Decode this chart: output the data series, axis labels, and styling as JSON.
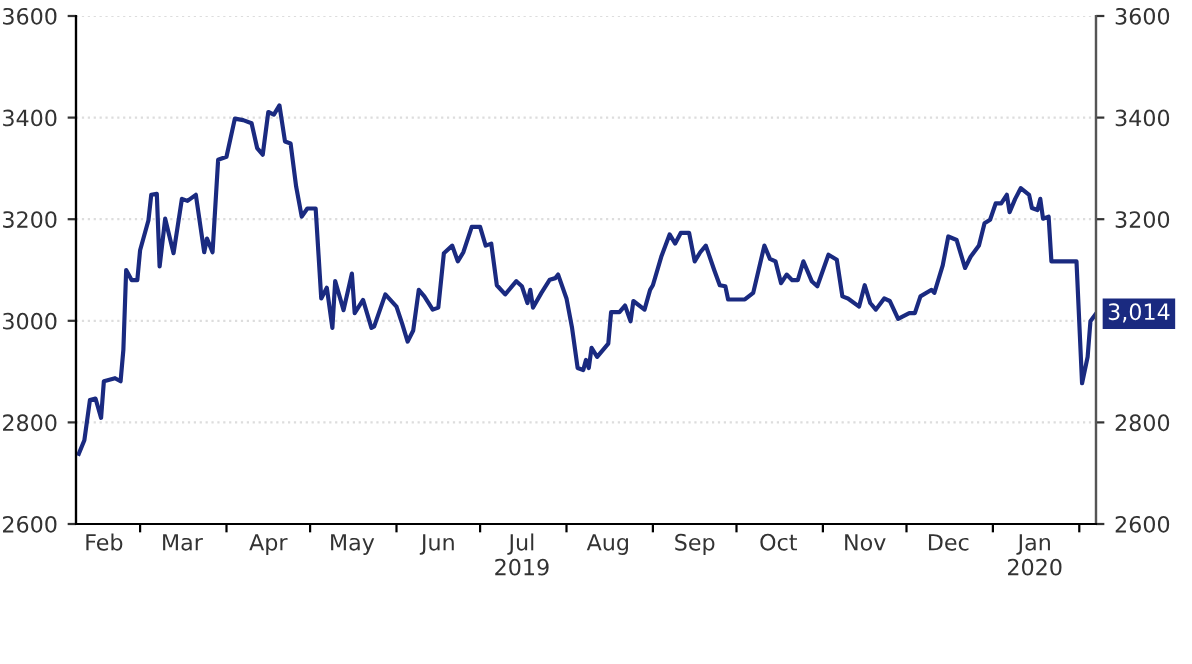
{
  "chart_data": {
    "type": "line",
    "x": [
      "2019-02-07",
      "2019-02-09",
      "2019-02-11",
      "2019-02-13",
      "2019-02-15",
      "2019-02-16",
      "2019-02-20",
      "2019-02-22",
      "2019-02-23",
      "2019-02-24",
      "2019-02-26",
      "2019-02-28",
      "2019-03-01",
      "2019-03-04",
      "2019-03-05",
      "2019-03-07",
      "2019-03-08",
      "2019-03-10",
      "2019-03-13",
      "2019-03-16",
      "2019-03-18",
      "2019-03-21",
      "2019-03-24",
      "2019-03-25",
      "2019-03-27",
      "2019-03-29",
      "2019-04-01",
      "2019-04-04",
      "2019-04-07",
      "2019-04-10",
      "2019-04-12",
      "2019-04-14",
      "2019-04-16",
      "2019-04-18",
      "2019-04-20",
      "2019-04-22",
      "2019-04-24",
      "2019-04-26",
      "2019-04-28",
      "2019-04-30",
      "2019-05-03",
      "2019-05-05",
      "2019-05-07",
      "2019-05-09",
      "2019-05-10",
      "2019-05-13",
      "2019-05-16",
      "2019-05-17",
      "2019-05-20",
      "2019-05-23",
      "2019-05-24",
      "2019-05-28",
      "2019-06-01",
      "2019-06-03",
      "2019-06-05",
      "2019-06-07",
      "2019-06-09",
      "2019-06-11",
      "2019-06-14",
      "2019-06-16",
      "2019-06-18",
      "2019-06-21",
      "2019-06-23",
      "2019-06-25",
      "2019-06-28",
      "2019-07-01",
      "2019-07-03",
      "2019-07-05",
      "2019-07-07",
      "2019-07-10",
      "2019-07-14",
      "2019-07-16",
      "2019-07-18",
      "2019-07-19",
      "2019-07-20",
      "2019-07-23",
      "2019-07-26",
      "2019-07-28",
      "2019-07-29",
      "2019-08-01",
      "2019-08-03",
      "2019-08-05",
      "2019-08-07",
      "2019-08-08",
      "2019-08-09",
      "2019-08-10",
      "2019-08-12",
      "2019-08-16",
      "2019-08-17",
      "2019-08-20",
      "2019-08-22",
      "2019-08-24",
      "2019-08-25",
      "2019-08-29",
      "2019-08-31",
      "2019-09-01",
      "2019-09-04",
      "2019-09-07",
      "2019-09-09",
      "2019-09-11",
      "2019-09-14",
      "2019-09-16",
      "2019-09-18",
      "2019-09-20",
      "2019-09-23",
      "2019-09-25",
      "2019-09-27",
      "2019-09-28",
      "2019-10-04",
      "2019-10-07",
      "2019-10-11",
      "2019-10-13",
      "2019-10-15",
      "2019-10-17",
      "2019-10-19",
      "2019-10-21",
      "2019-10-23",
      "2019-10-25",
      "2019-10-28",
      "2019-10-30",
      "2019-11-03",
      "2019-11-06",
      "2019-11-08",
      "2019-11-10",
      "2019-11-14",
      "2019-11-16",
      "2019-11-18",
      "2019-11-20",
      "2019-11-23",
      "2019-11-25",
      "2019-11-28",
      "2019-12-02",
      "2019-12-04",
      "2019-12-06",
      "2019-12-10",
      "2019-12-11",
      "2019-12-14",
      "2019-12-16",
      "2019-12-19",
      "2019-12-22",
      "2019-12-24",
      "2019-12-27",
      "2019-12-29",
      "2019-12-31",
      "2020-01-02",
      "2020-01-04",
      "2020-01-06",
      "2020-01-07",
      "2020-01-09",
      "2020-01-11",
      "2020-01-14",
      "2020-01-15",
      "2020-01-17",
      "2020-01-18",
      "2020-01-19",
      "2020-01-21",
      "2020-01-22",
      "2020-01-31",
      "2020-02-02",
      "2020-02-04",
      "2020-02-05",
      "2020-02-07"
    ],
    "series": [
      {
        "color": "#1a2a80",
        "values": [
          2738,
          2765,
          2844,
          2847,
          2809,
          2881,
          2887,
          2881,
          2943,
          3100,
          3080,
          3080,
          3139,
          3198,
          3248,
          3250,
          3107,
          3201,
          3133,
          3240,
          3236,
          3248,
          3135,
          3162,
          3135,
          3317,
          3323,
          3398,
          3395,
          3389,
          3340,
          3327,
          3411,
          3406,
          3424,
          3353,
          3349,
          3264,
          3205,
          3221,
          3221,
          3044,
          3065,
          2986,
          3078,
          3021,
          3093,
          3015,
          3041,
          2986,
          2989,
          3052,
          3028,
          2995,
          2959,
          2981,
          3061,
          3048,
          3022,
          3026,
          3133,
          3148,
          3117,
          3135,
          3185,
          3185,
          3148,
          3152,
          3070,
          3052,
          3078,
          3068,
          3035,
          3061,
          3026,
          3055,
          3081,
          3084,
          3091,
          3044,
          2986,
          2907,
          2903,
          2923,
          2907,
          2947,
          2929,
          2955,
          3017,
          3017,
          3030,
          2999,
          3039,
          3022,
          3061,
          3070,
          3126,
          3170,
          3152,
          3173,
          3173,
          3117,
          3135,
          3148,
          3100,
          3070,
          3068,
          3042,
          3042,
          3055,
          3148,
          3122,
          3117,
          3074,
          3091,
          3080,
          3080,
          3117,
          3078,
          3068,
          3130,
          3120,
          3048,
          3044,
          3028,
          3070,
          3035,
          3022,
          3044,
          3039,
          3004,
          3015,
          3015,
          3048,
          3061,
          3055,
          3109,
          3166,
          3159,
          3104,
          3126,
          3148,
          3192,
          3199,
          3231,
          3231,
          3248,
          3214,
          3240,
          3261,
          3248,
          3222,
          3218,
          3240,
          3201,
          3205,
          3117,
          3117,
          2877,
          2929,
          2999,
          3014
        ]
      }
    ],
    "xlim": [
      "2019-02-06",
      "2020-02-07"
    ],
    "xticks": [
      {
        "value": "2019-02-16",
        "label": "Feb"
      },
      {
        "value": "2019-03-01",
        "label": null
      },
      {
        "value": "2019-03-16",
        "label": "Mar"
      },
      {
        "value": "2019-04-01",
        "label": null
      },
      {
        "value": "2019-04-16",
        "label": "Apr"
      },
      {
        "value": "2019-05-01",
        "label": null
      },
      {
        "value": "2019-05-16",
        "label": "May"
      },
      {
        "value": "2019-06-01",
        "label": null
      },
      {
        "value": "2019-06-16",
        "label": "Jun"
      },
      {
        "value": "2019-07-01",
        "label": null
      },
      {
        "value": "2019-07-16",
        "label": "Jul\n2019"
      },
      {
        "value": "2019-08-01",
        "label": null
      },
      {
        "value": "2019-08-16",
        "label": "Aug"
      },
      {
        "value": "2019-09-01",
        "label": null
      },
      {
        "value": "2019-09-16",
        "label": "Sep"
      },
      {
        "value": "2019-10-01",
        "label": null
      },
      {
        "value": "2019-10-16",
        "label": "Oct"
      },
      {
        "value": "2019-11-01",
        "label": null
      },
      {
        "value": "2019-11-16",
        "label": "Nov"
      },
      {
        "value": "2019-12-01",
        "label": null
      },
      {
        "value": "2019-12-16",
        "label": "Dec"
      },
      {
        "value": "2020-01-01",
        "label": null
      },
      {
        "value": "2020-01-16",
        "label": "Jan\n2020"
      },
      {
        "value": "2020-02-01",
        "label": null
      }
    ],
    "ylim": [
      2600,
      3600
    ],
    "yticks": [
      2600,
      2800,
      3000,
      3200,
      3400,
      3600
    ],
    "y2lim": [
      2600,
      3600
    ],
    "y2ticks": [
      2600,
      2800,
      3200,
      3400,
      3600
    ],
    "grid": "y",
    "line_style": "solid",
    "marker": "none",
    "annotations": [
      {
        "text": "3,014",
        "x": "2020-02-07",
        "y": 3014
      }
    ]
  }
}
